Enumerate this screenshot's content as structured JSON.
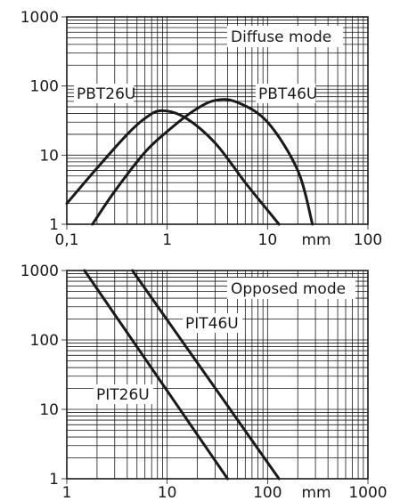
{
  "chart_data": [
    {
      "type": "line",
      "annotation": "Diffuse mode",
      "x_unit": "mm",
      "x_scale": "log",
      "y_scale": "log",
      "xlim": [
        0.1,
        100
      ],
      "ylim": [
        1,
        1000
      ],
      "x_ticks": [
        "0,1",
        "1",
        "10",
        "100"
      ],
      "y_ticks": [
        "1",
        "10",
        "100",
        "1000"
      ],
      "grid": true,
      "series": [
        {
          "name": "PBT26U",
          "x": [
            0.1,
            0.2,
            0.4,
            0.6,
            0.87,
            1.5,
            3,
            6,
            10,
            13
          ],
          "y": [
            2,
            6.5,
            20,
            34,
            44,
            35,
            15,
            4,
            1.6,
            1
          ]
        },
        {
          "name": "PBT46U",
          "x": [
            0.18,
            0.3,
            0.6,
            1,
            1.8,
            3,
            5,
            10,
            20,
            28
          ],
          "y": [
            1,
            3,
            11,
            22,
            43,
            62,
            58,
            30,
            6,
            1
          ]
        }
      ]
    },
    {
      "type": "line",
      "annotation": "Opposed mode",
      "x_unit": "mm",
      "x_scale": "log",
      "y_scale": "log",
      "xlim": [
        1,
        1000
      ],
      "ylim": [
        1,
        1000
      ],
      "x_ticks": [
        "1",
        "10",
        "100",
        "1000"
      ],
      "y_ticks": [
        "1",
        "10",
        "100",
        "1000"
      ],
      "grid": true,
      "series": [
        {
          "name": "PIT26U",
          "x": [
            1.5,
            40
          ],
          "y": [
            1000,
            1
          ]
        },
        {
          "name": "PIT46U",
          "x": [
            4.5,
            130
          ],
          "y": [
            1000,
            1
          ]
        }
      ]
    }
  ]
}
